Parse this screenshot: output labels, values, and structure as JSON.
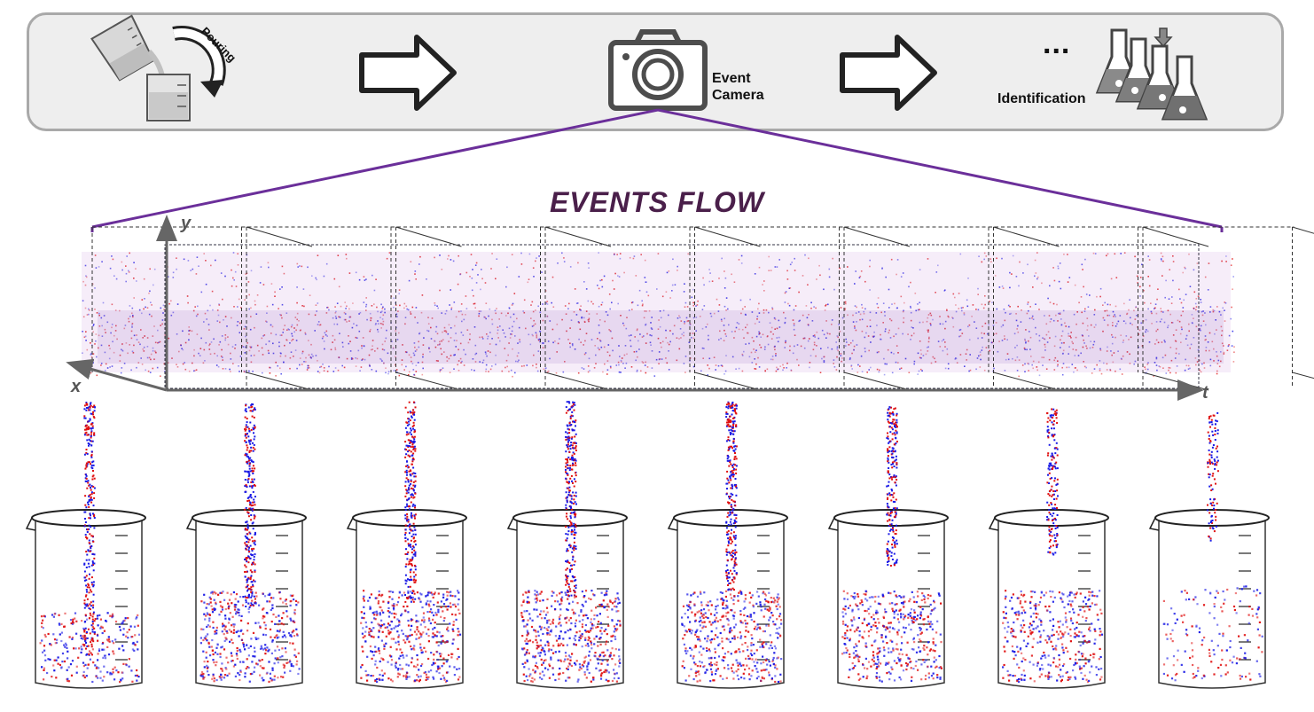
{
  "pipeline": {
    "pour_label": "Pouring",
    "camera_label_line1": "Event",
    "camera_label_line2": "Camera",
    "ellipsis": "...",
    "identification_label": "Identification"
  },
  "events_flow": {
    "title": "EVENTS FLOW",
    "axis_x": "x",
    "axis_y": "y",
    "axis_t": "t",
    "frame_count": 8
  },
  "beakers": {
    "count": 8
  },
  "colors": {
    "panel_bg": "#eeeeee",
    "panel_border": "#a9a9a9",
    "connector": "#6b2f9a",
    "title": "#4a1f4a",
    "positive_event": "#e01010",
    "negative_event": "#1a1ae6"
  }
}
